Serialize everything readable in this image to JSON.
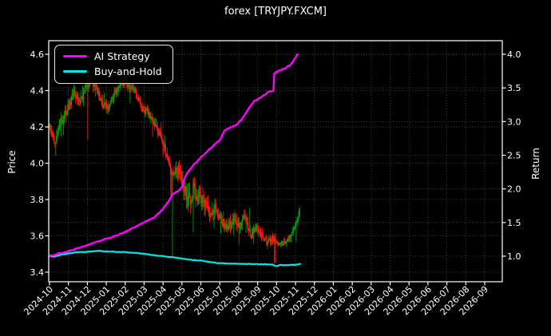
{
  "title": "forex [TRYJPY.FXCM]",
  "legend": {
    "items": [
      {
        "label": "AI Strategy",
        "color": "#ff00ff"
      },
      {
        "label": "Buy-and-Hold",
        "color": "#00e8e8"
      }
    ]
  },
  "chart_data": {
    "type": "candlestick+line",
    "title": "forex [TRYJPY.FXCM]",
    "instrument_label": "forex [TRYJPY.FXCM]",
    "grid": true,
    "legend_position": "upper-left",
    "x_axis": {
      "tick_labels": [
        "2024-10",
        "2024-11",
        "2024-12",
        "2025-01",
        "2025-02",
        "2025-03",
        "2025-04",
        "2025-05",
        "2025-06",
        "2025-07",
        "2025-08",
        "2025-09",
        "2025-10",
        "2025-11",
        "2025-12",
        "2026-01",
        "2026-02",
        "2026-03",
        "2026-04",
        "2026-05",
        "2026-06",
        "2026-07",
        "2026-08",
        "2026-09"
      ],
      "label_rotation_deg": 45,
      "data_start": "2024-10",
      "data_end": "2025-11"
    },
    "left_axis": {
      "label": "Price",
      "ticks": [
        4.6,
        4.4,
        4.2,
        4.0,
        3.8,
        3.6,
        3.4
      ],
      "range": [
        3.347,
        4.675
      ]
    },
    "right_axis": {
      "label": "Return",
      "ticks": [
        4.0,
        3.5,
        3.0,
        2.5,
        2.0,
        1.5,
        1.0
      ],
      "range": [
        0.62,
        4.2
      ]
    },
    "colors": {
      "background": "#000000",
      "text": "#ffffff",
      "grid": "#cfcfcf",
      "candle_up": "#00a000",
      "candle_down": "#ff1212",
      "strategy": "#ff00ff",
      "buyhold": "#00e8e8"
    },
    "series": {
      "months_of_data": 13.25,
      "price_close_anchors": [
        [
          0.0,
          4.2
        ],
        [
          0.15,
          4.16
        ],
        [
          0.3,
          4.11
        ],
        [
          0.55,
          4.22
        ],
        [
          0.8,
          4.26
        ],
        [
          1.0,
          4.31
        ],
        [
          1.3,
          4.4
        ],
        [
          1.6,
          4.33
        ],
        [
          1.9,
          4.42
        ],
        [
          2.2,
          4.46
        ],
        [
          2.5,
          4.4
        ],
        [
          2.8,
          4.33
        ],
        [
          3.1,
          4.3
        ],
        [
          3.4,
          4.38
        ],
        [
          3.7,
          4.44
        ],
        [
          4.0,
          4.45
        ],
        [
          4.3,
          4.42
        ],
        [
          4.6,
          4.38
        ],
        [
          4.9,
          4.3
        ],
        [
          5.2,
          4.28
        ],
        [
          5.5,
          4.22
        ],
        [
          5.8,
          4.16
        ],
        [
          6.1,
          4.08
        ],
        [
          6.35,
          3.98
        ],
        [
          6.55,
          3.92
        ],
        [
          6.7,
          3.99
        ],
        [
          6.95,
          3.92
        ],
        [
          7.2,
          3.84
        ],
        [
          7.45,
          3.78
        ],
        [
          7.6,
          3.86
        ],
        [
          7.9,
          3.8
        ],
        [
          8.2,
          3.78
        ],
        [
          8.5,
          3.72
        ],
        [
          8.8,
          3.76
        ],
        [
          9.1,
          3.68
        ],
        [
          9.4,
          3.63
        ],
        [
          9.7,
          3.7
        ],
        [
          10.0,
          3.66
        ],
        [
          10.3,
          3.71
        ],
        [
          10.6,
          3.6
        ],
        [
          10.9,
          3.65
        ],
        [
          11.2,
          3.61
        ],
        [
          11.5,
          3.56
        ],
        [
          11.8,
          3.59
        ],
        [
          12.1,
          3.55
        ],
        [
          12.4,
          3.56
        ],
        [
          12.7,
          3.59
        ],
        [
          12.95,
          3.64
        ],
        [
          13.1,
          3.68
        ],
        [
          13.2,
          3.74
        ],
        [
          13.25,
          3.72
        ]
      ],
      "volatility_anchors": [
        [
          0,
          0.05
        ],
        [
          1,
          0.06
        ],
        [
          2,
          0.06
        ],
        [
          3,
          0.055
        ],
        [
          4,
          0.05
        ],
        [
          5,
          0.05
        ],
        [
          6,
          0.06
        ],
        [
          6.5,
          0.07
        ],
        [
          7,
          0.1
        ],
        [
          7.5,
          0.11
        ],
        [
          8,
          0.1
        ],
        [
          8.5,
          0.08
        ],
        [
          9,
          0.08
        ],
        [
          9.5,
          0.07
        ],
        [
          10,
          0.065
        ],
        [
          10.5,
          0.07
        ],
        [
          11,
          0.06
        ],
        [
          11.5,
          0.05
        ],
        [
          12,
          0.035
        ],
        [
          12.5,
          0.035
        ],
        [
          13,
          0.05
        ],
        [
          13.25,
          0.055
        ]
      ],
      "crash_wicks": [
        {
          "t": 2.03,
          "low": 4.13,
          "dir": "down"
        },
        {
          "t": 6.5,
          "low": 3.49,
          "dir": "up"
        },
        {
          "t": 11.92,
          "low": 3.45,
          "dir": "down"
        }
      ],
      "strategy_return_anchors": [
        [
          0,
          1.0
        ],
        [
          0.5,
          1.04
        ],
        [
          1.0,
          1.07
        ],
        [
          1.5,
          1.12
        ],
        [
          2.0,
          1.16
        ],
        [
          2.5,
          1.21
        ],
        [
          3.0,
          1.26
        ],
        [
          3.5,
          1.3
        ],
        [
          4.0,
          1.36
        ],
        [
          4.5,
          1.43
        ],
        [
          5.0,
          1.5
        ],
        [
          5.5,
          1.57
        ],
        [
          6.0,
          1.7
        ],
        [
          6.3,
          1.82
        ],
        [
          6.5,
          1.92
        ],
        [
          6.8,
          1.97
        ],
        [
          7.0,
          2.02
        ],
        [
          7.2,
          2.2
        ],
        [
          7.5,
          2.32
        ],
        [
          8.0,
          2.47
        ],
        [
          8.2,
          2.52
        ],
        [
          8.5,
          2.6
        ],
        [
          8.8,
          2.68
        ],
        [
          9.0,
          2.72
        ],
        [
          9.25,
          2.87
        ],
        [
          9.6,
          2.92
        ],
        [
          9.9,
          2.95
        ],
        [
          10.2,
          3.05
        ],
        [
          10.5,
          3.18
        ],
        [
          10.8,
          3.3
        ],
        [
          11.0,
          3.33
        ],
        [
          11.3,
          3.38
        ],
        [
          11.6,
          3.44
        ],
        [
          11.85,
          3.46
        ],
        [
          11.88,
          3.72
        ],
        [
          12.2,
          3.76
        ],
        [
          12.5,
          3.8
        ],
        [
          12.8,
          3.86
        ],
        [
          13.0,
          3.95
        ],
        [
          13.15,
          4.02
        ],
        [
          13.22,
          4.04
        ]
      ],
      "buyhold_return_anchors": [
        [
          0,
          1.0
        ],
        [
          0.3,
          0.995
        ],
        [
          0.6,
          1.02
        ],
        [
          1.0,
          1.04
        ],
        [
          1.5,
          1.06
        ],
        [
          2.0,
          1.065
        ],
        [
          2.6,
          1.08
        ],
        [
          3.0,
          1.07
        ],
        [
          3.5,
          1.065
        ],
        [
          4.0,
          1.06
        ],
        [
          4.5,
          1.05
        ],
        [
          5.0,
          1.035
        ],
        [
          5.5,
          1.015
        ],
        [
          6.0,
          1.0
        ],
        [
          6.5,
          0.985
        ],
        [
          7.0,
          0.965
        ],
        [
          7.5,
          0.945
        ],
        [
          8.0,
          0.935
        ],
        [
          8.8,
          0.9
        ],
        [
          9.5,
          0.89
        ],
        [
          10.5,
          0.885
        ],
        [
          11.3,
          0.88
        ],
        [
          11.85,
          0.873
        ],
        [
          11.95,
          0.847
        ],
        [
          12.15,
          0.868
        ],
        [
          12.6,
          0.868
        ],
        [
          13.0,
          0.872
        ],
        [
          13.25,
          0.882
        ]
      ]
    }
  }
}
